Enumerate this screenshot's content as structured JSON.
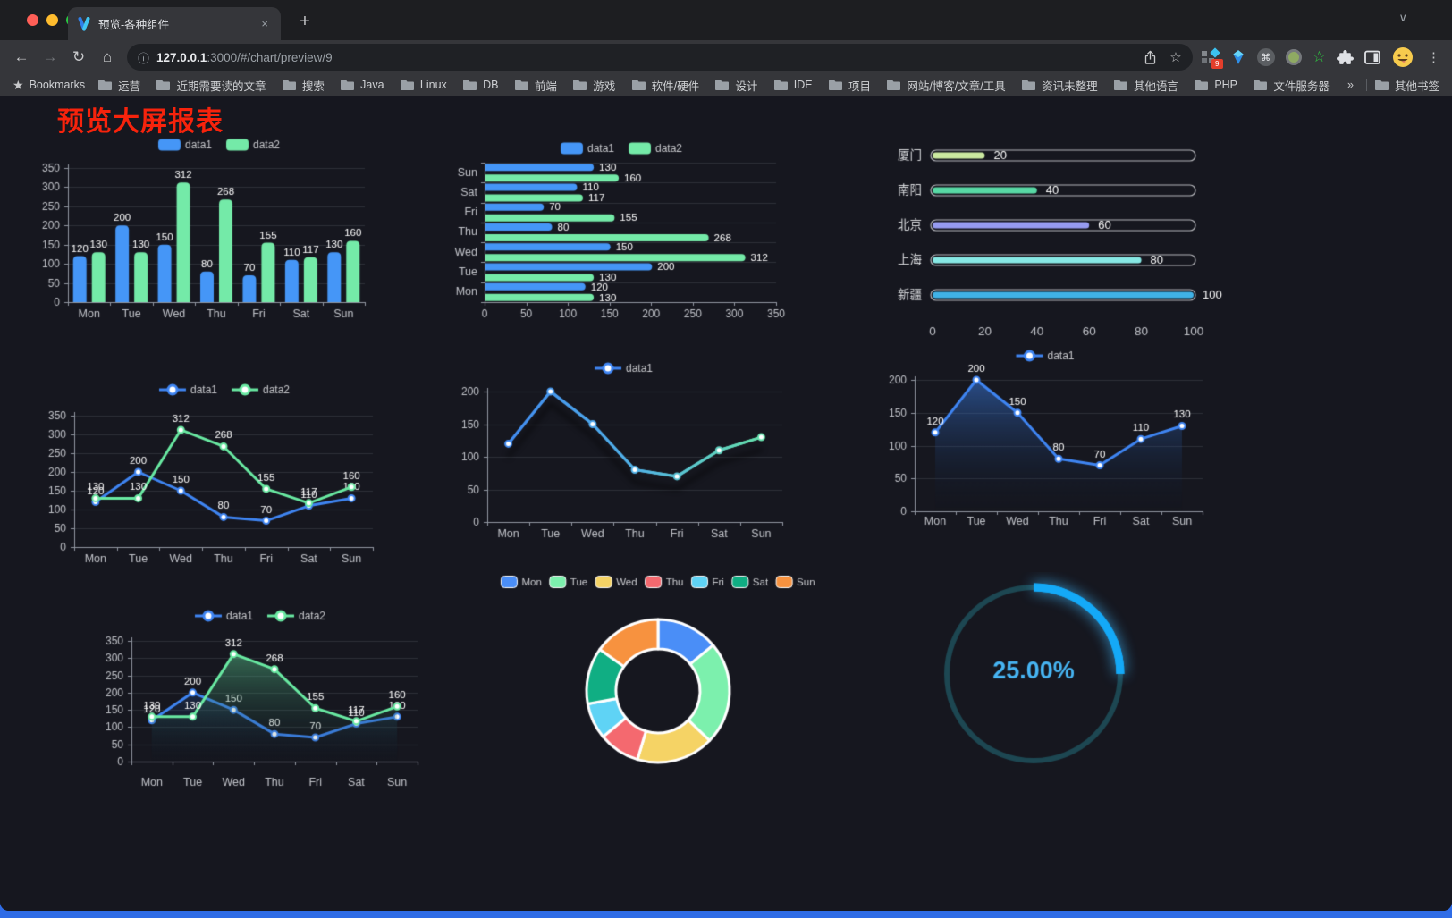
{
  "browser": {
    "tab": {
      "title": "预览-各种组件",
      "close_glyph": "×",
      "new_tab_glyph": "+",
      "chevron_glyph": "∨"
    },
    "nav": {
      "back_glyph": "←",
      "forward_glyph": "→",
      "reload_glyph": "↻",
      "home_glyph": "⌂"
    },
    "url": {
      "info_glyph": "ⓘ",
      "host": "127.0.0.1",
      "rest": ":3000/#/chart/preview/9",
      "star_glyph": "☆"
    },
    "extensions": {
      "badge_count": "9",
      "cmd_glyph": "⌘",
      "menu_glyph": "⋮"
    },
    "bookmarks": {
      "star_glyph": "★",
      "star_label": "Bookmarks",
      "folders": [
        "运营",
        "近期需要读的文章",
        "搜索",
        "Java",
        "Linux",
        "DB",
        "前端",
        "游戏",
        "软件/硬件",
        "设计",
        "IDE",
        "项目",
        "网站/博客/文章/工具",
        "资讯未整理",
        "其他语言",
        "PHP",
        "文件服务器"
      ],
      "overflow_glyph": "»",
      "other_label": "其他书签"
    }
  },
  "page": {
    "title": "预览大屏报表",
    "title_color": "#f7230c",
    "background": "#16171f"
  },
  "palette": {
    "bar_blue": "#4596f7",
    "bar_green": "#74eaa8",
    "line_blue": "#3f85f2",
    "line_green": "#69e9a2",
    "axis": "#9096a0",
    "grid": "#2e3139",
    "tick_label": "#c2c4ca",
    "value_label": "#ffffff",
    "legend_text": "#c8c9cd"
  },
  "chart_data": [
    {
      "id": "bar1",
      "type": "bar",
      "categories": [
        "Mon",
        "Tue",
        "Wed",
        "Thu",
        "Fri",
        "Sat",
        "Sun"
      ],
      "series": [
        {
          "name": "data1",
          "color": "#4596f7",
          "values": [
            120,
            200,
            150,
            80,
            70,
            110,
            130
          ]
        },
        {
          "name": "data2",
          "color": "#74eaa8",
          "values": [
            130,
            130,
            312,
            268,
            155,
            117,
            160
          ]
        }
      ],
      "ylim": [
        0,
        350
      ],
      "ystep": 50,
      "legend_position": "top"
    },
    {
      "id": "hbar",
      "type": "hbar",
      "categories": [
        "Mon",
        "Tue",
        "Wed",
        "Thu",
        "Fri",
        "Sat",
        "Sun"
      ],
      "series": [
        {
          "name": "data1",
          "color": "#4596f7",
          "values": [
            120,
            200,
            150,
            80,
            70,
            110,
            130
          ]
        },
        {
          "name": "data2",
          "color": "#74eaa8",
          "values": [
            130,
            130,
            312,
            268,
            155,
            117,
            160
          ]
        }
      ],
      "xlim": [
        0,
        350
      ],
      "xstep": 50,
      "legend_position": "top"
    },
    {
      "id": "progress",
      "type": "progress",
      "items": [
        {
          "label": "厦门",
          "value": 20,
          "color": "#cbe9a0"
        },
        {
          "label": "南阳",
          "value": 40,
          "color": "#58d9a5"
        },
        {
          "label": "北京",
          "value": 60,
          "color": "#969bf0"
        },
        {
          "label": "上海",
          "value": 80,
          "color": "#87e8e4"
        },
        {
          "label": "新疆",
          "value": 100,
          "color": "#40b2e6"
        }
      ],
      "axis_ticks": [
        0,
        20,
        40,
        60,
        80,
        100
      ],
      "max": 100
    },
    {
      "id": "line2",
      "type": "line",
      "categories": [
        "Mon",
        "Tue",
        "Wed",
        "Thu",
        "Fri",
        "Sat",
        "Sun"
      ],
      "series": [
        {
          "name": "data1",
          "color": "#3f85f2",
          "values": [
            120,
            200,
            150,
            80,
            70,
            110,
            130
          ]
        },
        {
          "name": "data2",
          "color": "#69e9a2",
          "values": [
            130,
            130,
            312,
            268,
            155,
            117,
            160
          ]
        }
      ],
      "ylim": [
        0,
        350
      ],
      "ystep": 50,
      "labels": true
    },
    {
      "id": "line1",
      "type": "line",
      "categories": [
        "Mon",
        "Tue",
        "Wed",
        "Thu",
        "Fri",
        "Sat",
        "Sun"
      ],
      "series": [
        {
          "name": "data1",
          "color": "#3f85f2",
          "values": [
            120,
            200,
            150,
            80,
            70,
            110,
            130
          ]
        }
      ],
      "ylim": [
        0,
        200
      ],
      "ystep": 50,
      "labels": false,
      "shadow": true,
      "line_gradient": [
        "#3f85f2",
        "#52b3e8",
        "#69e9a2"
      ]
    },
    {
      "id": "area1",
      "type": "line",
      "categories": [
        "Mon",
        "Tue",
        "Wed",
        "Thu",
        "Fri",
        "Sat",
        "Sun"
      ],
      "series": [
        {
          "name": "data1",
          "color": "#3f85f2",
          "values": [
            120,
            200,
            150,
            80,
            70,
            110,
            130
          ],
          "area": true
        }
      ],
      "ylim": [
        0,
        200
      ],
      "ystep": 50,
      "labels": true
    },
    {
      "id": "area2",
      "type": "line",
      "categories": [
        "Mon",
        "Tue",
        "Wed",
        "Thu",
        "Fri",
        "Sat",
        "Sun"
      ],
      "series": [
        {
          "name": "data1",
          "color": "#3f85f2",
          "values": [
            120,
            200,
            150,
            80,
            70,
            110,
            130
          ],
          "area": true
        },
        {
          "name": "data2",
          "color": "#69e9a2",
          "values": [
            130,
            130,
            312,
            268,
            155,
            117,
            160
          ],
          "area": true
        }
      ],
      "ylim": [
        0,
        350
      ],
      "ystep": 50,
      "labels": true
    },
    {
      "id": "pie",
      "type": "pie",
      "labels": [
        "Mon",
        "Tue",
        "Wed",
        "Thu",
        "Fri",
        "Sat",
        "Sun"
      ],
      "values": [
        120,
        200,
        150,
        80,
        70,
        110,
        130
      ],
      "colors": [
        "#4a8ef7",
        "#7cf0ad",
        "#f5d365",
        "#f4696f",
        "#5fd3f5",
        "#10ae83",
        "#f7923f"
      ]
    },
    {
      "id": "gauge",
      "type": "gauge",
      "value_text": "25.00%",
      "percent": 25,
      "track_color": "#1d4752",
      "arc_color": "#14a9f7",
      "text_color": "#47b5f3"
    }
  ]
}
